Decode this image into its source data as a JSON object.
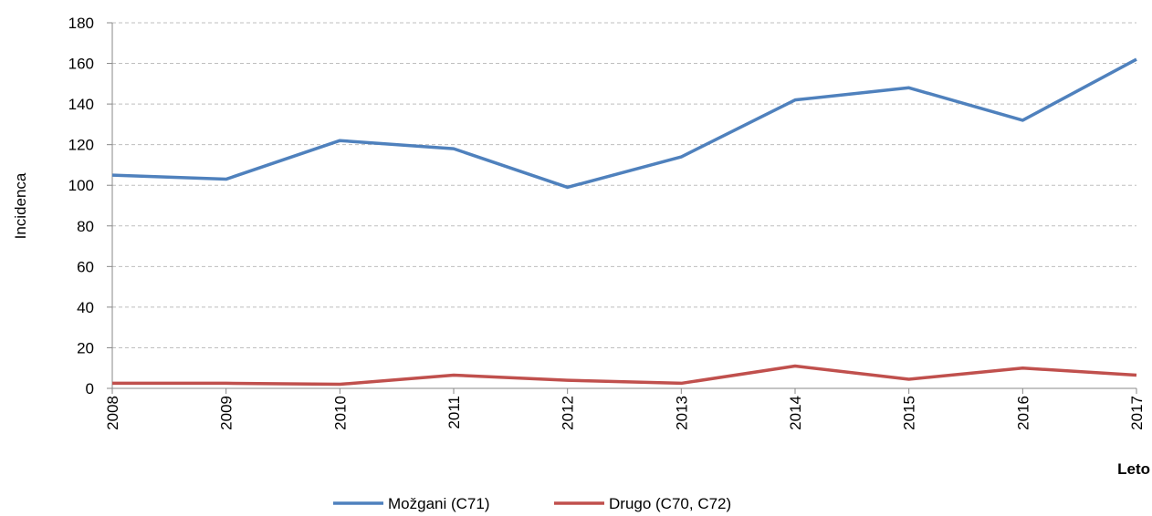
{
  "chart_data": {
    "type": "line",
    "categories": [
      "2008",
      "2009",
      "2010",
      "2011",
      "2012",
      "2013",
      "2014",
      "2015",
      "2016",
      "2017"
    ],
    "series": [
      {
        "name": "Možgani (C71)",
        "color": "#4f81bd",
        "values": [
          105,
          103,
          122,
          118,
          99,
          114,
          142,
          148,
          132,
          162
        ]
      },
      {
        "name": "Drugo (C70, C72)",
        "color": "#c0504d",
        "values": [
          2.5,
          2.5,
          2,
          6.5,
          4,
          2.5,
          11,
          4.5,
          10,
          6.5
        ]
      }
    ],
    "y_label": "Incidenca",
    "x_label": "Leto",
    "ylim": [
      0,
      180
    ],
    "yticks": [
      0,
      20,
      40,
      60,
      80,
      100,
      120,
      140,
      160,
      180
    ],
    "grid": true
  }
}
